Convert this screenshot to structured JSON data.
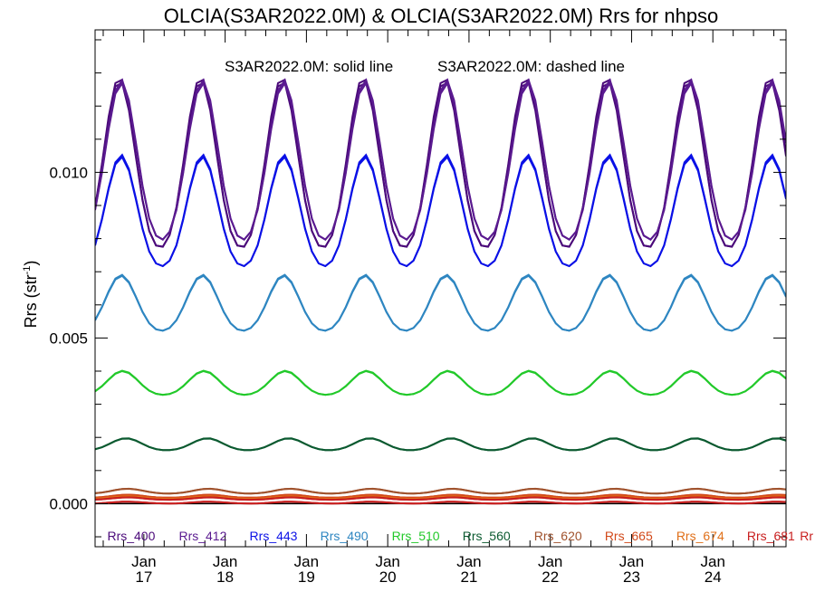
{
  "chart_data": {
    "type": "line",
    "title": "OLCIA(S3AR2022.0M) & OLCIA(S3AR2022.0M)  Rrs for nhpso",
    "annotation_solid": "S3AR2022.0M: solid line",
    "annotation_dashed": "S3AR2022.0M: dashed line",
    "xlabel": "",
    "ylabel": "Rrs (str",
    "ylabel_sup": "-1",
    "ylabel_close": ")",
    "xlim": [
      16.4,
      24.9
    ],
    "ylim": [
      -0.0013,
      0.0143
    ],
    "x_ticks": [
      {
        "value": 17,
        "month": "Jan",
        "day": "17"
      },
      {
        "value": 18,
        "month": "Jan",
        "day": "18"
      },
      {
        "value": 19,
        "month": "Jan",
        "day": "19"
      },
      {
        "value": 20,
        "month": "Jan",
        "day": "20"
      },
      {
        "value": 21,
        "month": "Jan",
        "day": "21"
      },
      {
        "value": 22,
        "month": "Jan",
        "day": "22"
      },
      {
        "value": 23,
        "month": "Jan",
        "day": "23"
      },
      {
        "value": 24,
        "month": "Jan",
        "day": "24"
      }
    ],
    "y_ticks": [
      {
        "value": 0.0,
        "label": "0.000"
      },
      {
        "value": 0.005,
        "label": "0.005"
      },
      {
        "value": 0.01,
        "label": "0.010"
      }
    ],
    "y_minor_step": 0.001,
    "x_minor_step": 0.25,
    "zero_line": true,
    "grid": false,
    "legend_position": "bottom",
    "series": [
      {
        "name": "Rrs_400",
        "color": "#4b0a7a",
        "base": 0.00995,
        "amp": 0.00283,
        "peak": 16.7,
        "label_x": 16.55
      },
      {
        "name": "Rrs_412",
        "color": "#5a1a90",
        "base": 0.01005,
        "amp": 0.00265,
        "peak": 16.72,
        "label_x": 17.43
      },
      {
        "name": "Rrs_443",
        "color": "#0a10e6",
        "base": 0.00862,
        "amp": 0.00185,
        "peak": 16.72,
        "label_x": 18.3
      },
      {
        "name": "Rrs_490",
        "color": "#2e86c1",
        "base": 0.00595,
        "amp": 0.00093,
        "peak": 16.72,
        "label_x": 19.17
      },
      {
        "name": "Rrs_510",
        "color": "#22c92a",
        "base": 0.0036,
        "amp": 0.0004,
        "peak": 16.74,
        "label_x": 20.05
      },
      {
        "name": "Rrs_560",
        "color": "#0b5a30",
        "base": 0.00177,
        "amp": 0.0002,
        "peak": 16.78,
        "label_x": 20.92
      },
      {
        "name": "Rrs_620",
        "color": "#a0522d",
        "base": 0.00037,
        "amp": 8e-05,
        "peak": 16.8,
        "label_x": 21.8
      },
      {
        "name": "Rrs_665",
        "color": "#d2491a",
        "base": 0.00022,
        "amp": 5e-05,
        "peak": 16.8,
        "label_x": 22.67
      },
      {
        "name": "Rrs_674",
        "color": "#e0701a",
        "base": 0.00018,
        "amp": 4e-05,
        "peak": 16.8,
        "label_x": 23.55
      },
      {
        "name": "Rrs_681",
        "color": "#c81e1e",
        "base": 0.00015,
        "amp": 4e-05,
        "peak": 16.8,
        "label_x": 24.42
      },
      {
        "name": "Rr",
        "color": "#c81e1e",
        "base": 3e-05,
        "amp": 3e-05,
        "peak": 16.8,
        "label_x": 25.07
      }
    ]
  }
}
